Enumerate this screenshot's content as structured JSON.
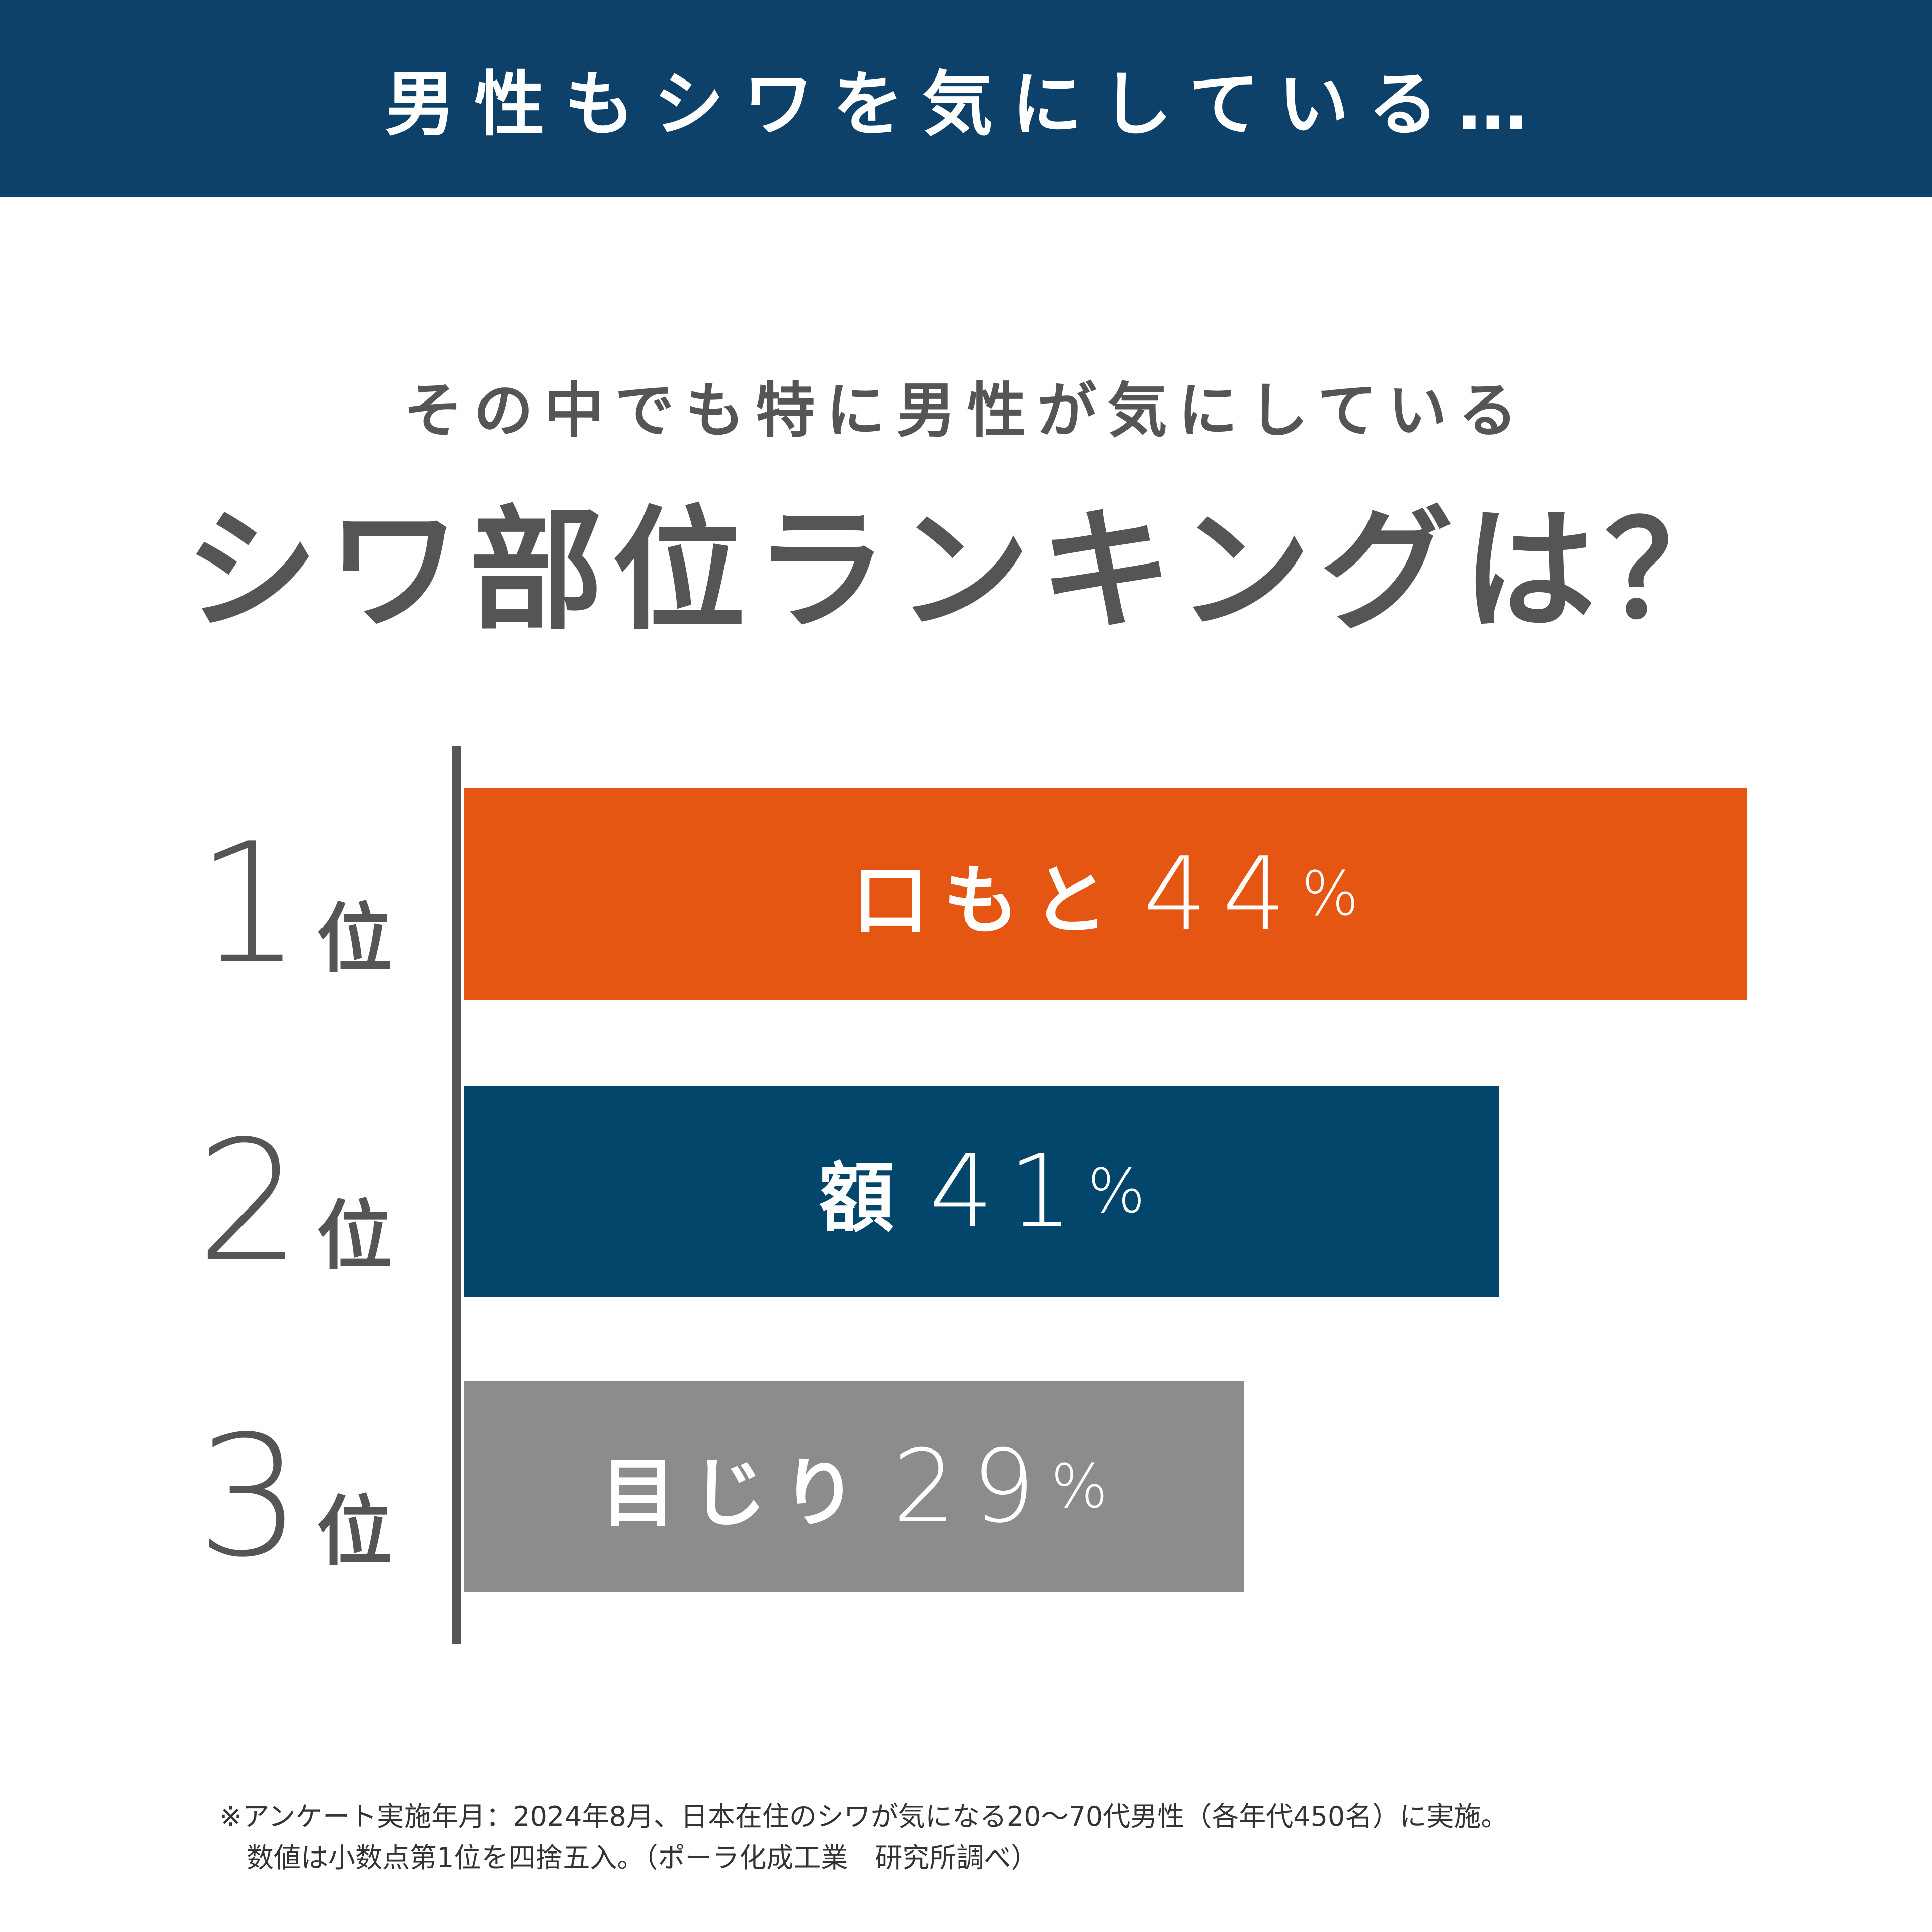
{
  "header": {
    "title": "男性もシワを気にしている…",
    "bg": "#0d4169"
  },
  "subtitle": "その中でも特に男性が気にしている",
  "title": "シワ部位ランキングは？",
  "chart_data": {
    "type": "bar",
    "orientation": "horizontal",
    "categories": [
      "口もと",
      "額",
      "目じり"
    ],
    "ranks": [
      {
        "num": "1",
        "suffix": "位"
      },
      {
        "num": "2",
        "suffix": "位"
      },
      {
        "num": "3",
        "suffix": "位"
      }
    ],
    "values": [
      44,
      41,
      29
    ],
    "value_labels": [
      "44",
      "41",
      "29"
    ],
    "unit": "%",
    "colors": [
      "#e55613",
      "#03466b",
      "#8c8c8c"
    ]
  },
  "footnote": {
    "line1": "※アンケート実施年月：2024年8月、日本在住のシワが気になる20〜70代男性（各年代450名）に実施。",
    "line2": "数値は小数点第1位を四捨五入。（ポーラ化成工業　研究所調べ）"
  }
}
